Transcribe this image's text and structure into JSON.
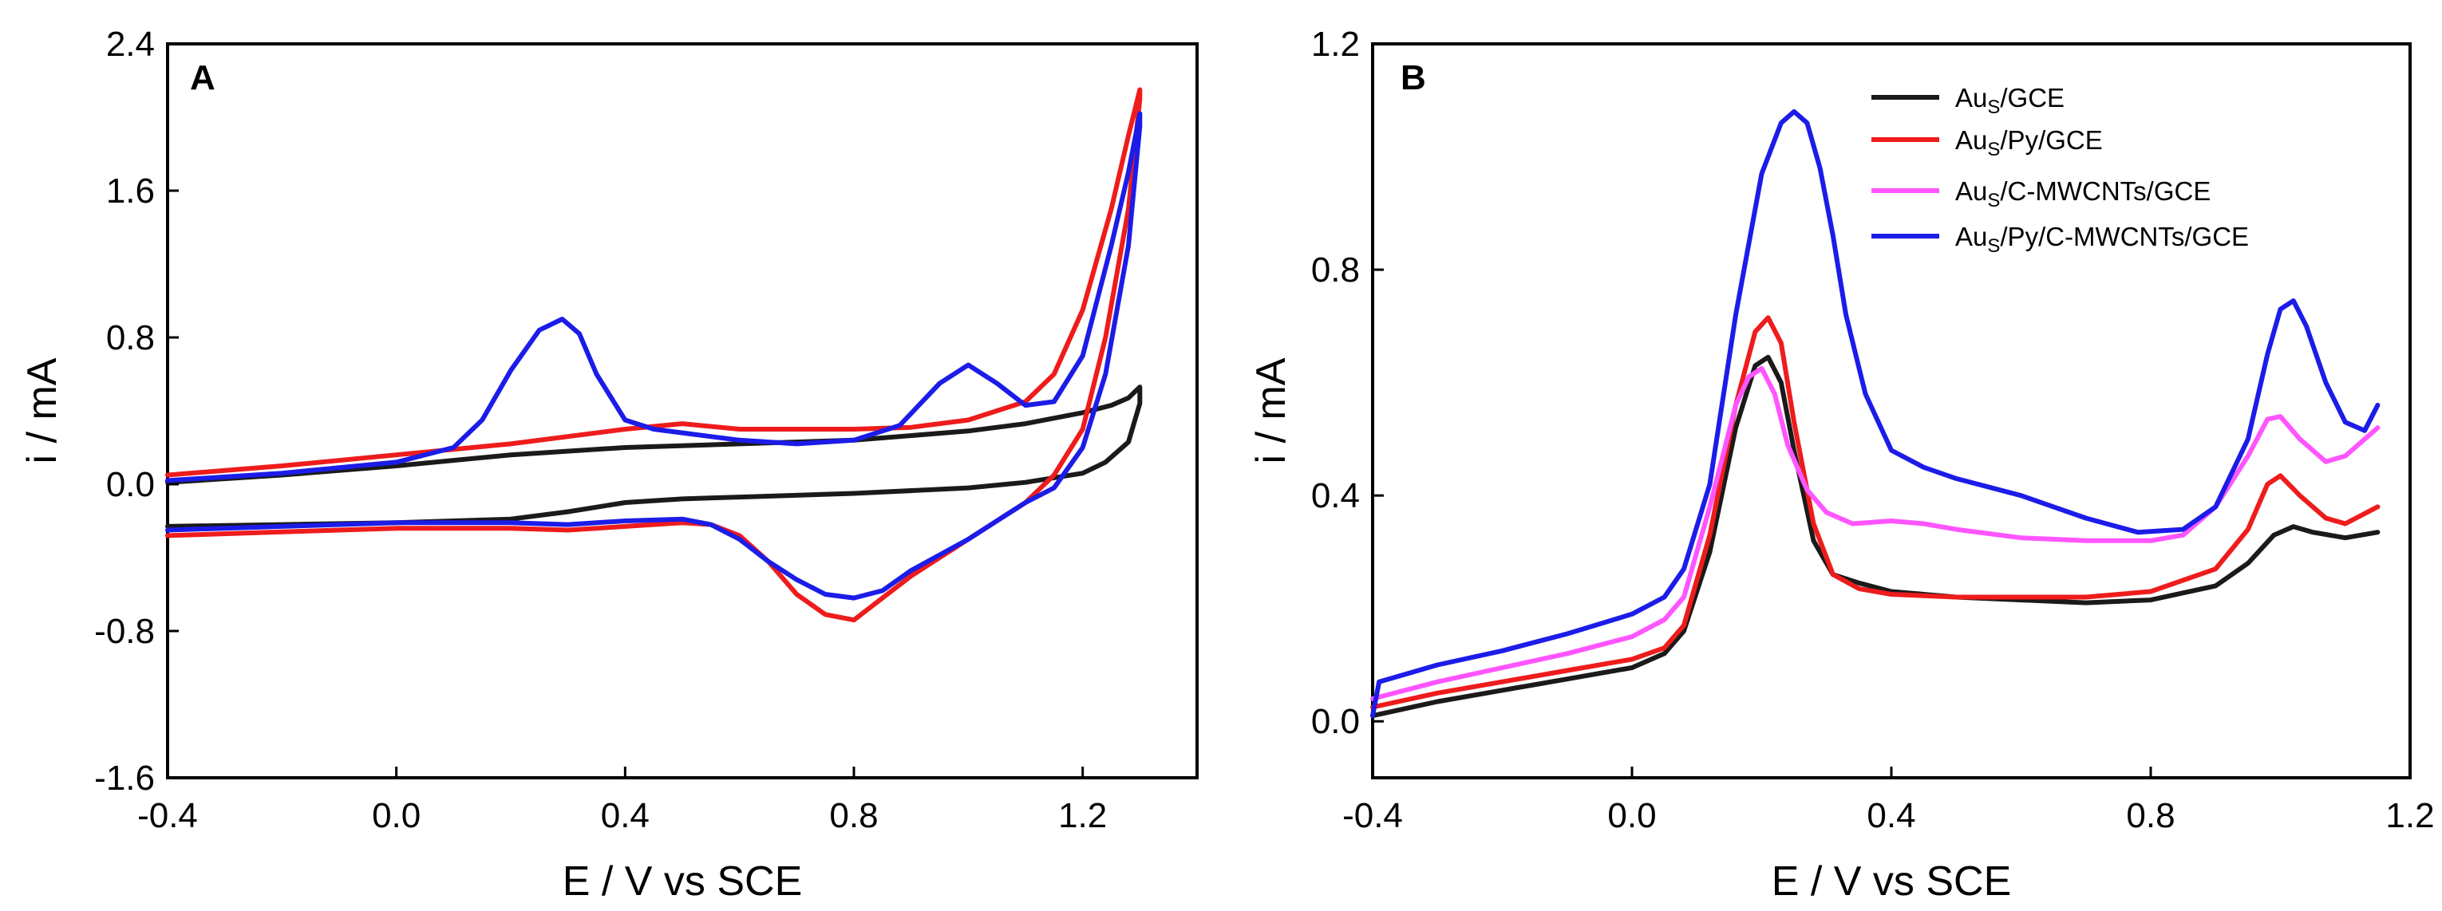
{
  "chart_data": [
    {
      "type": "line",
      "panel": "A",
      "xlabel": "E / V vs SCE",
      "ylabel": "i / mA",
      "xlim": [
        -0.4,
        1.4
      ],
      "ylim": [
        -1.6,
        2.4
      ],
      "xticks": [
        -0.4,
        0.0,
        0.4,
        0.8,
        1.2
      ],
      "yticks": [
        -1.6,
        -0.8,
        0.0,
        0.8,
        1.6,
        2.4
      ],
      "x_tick_labels": [
        "-0.4",
        "0.0",
        "0.4",
        "0.8",
        "1.2"
      ],
      "y_tick_labels": [
        "-1.6",
        "-0.8",
        "0.0",
        "0.8",
        "1.6",
        "2.4"
      ],
      "series": [
        {
          "name": "black",
          "color": "#1a1a1a",
          "x": [
            -0.4,
            -0.2,
            0.0,
            0.2,
            0.4,
            0.6,
            0.8,
            1.0,
            1.1,
            1.2,
            1.25,
            1.28,
            1.3,
            1.3,
            1.28,
            1.24,
            1.2,
            1.1,
            1.0,
            0.8,
            0.6,
            0.5,
            0.4,
            0.3,
            0.2,
            0.0,
            -0.2,
            -0.4
          ],
          "y": [
            0.01,
            0.05,
            0.1,
            0.16,
            0.2,
            0.22,
            0.24,
            0.29,
            0.33,
            0.39,
            0.43,
            0.47,
            0.53,
            0.44,
            0.23,
            0.12,
            0.06,
            0.01,
            -0.02,
            -0.05,
            -0.07,
            -0.08,
            -0.1,
            -0.15,
            -0.19,
            -0.21,
            -0.22,
            -0.23
          ]
        },
        {
          "name": "red",
          "color": "#ee1c1c",
          "x": [
            -0.4,
            -0.2,
            0.0,
            0.2,
            0.4,
            0.5,
            0.6,
            0.8,
            0.9,
            1.0,
            1.1,
            1.15,
            1.2,
            1.25,
            1.28,
            1.3,
            1.3,
            1.28,
            1.24,
            1.2,
            1.15,
            1.1,
            1.0,
            0.9,
            0.8,
            0.75,
            0.7,
            0.65,
            0.6,
            0.55,
            0.5,
            0.4,
            0.3,
            0.2,
            0.0,
            -0.2,
            -0.4
          ],
          "y": [
            0.05,
            0.1,
            0.16,
            0.22,
            0.3,
            0.33,
            0.3,
            0.3,
            0.31,
            0.35,
            0.45,
            0.6,
            0.95,
            1.5,
            1.9,
            2.15,
            2.1,
            1.5,
            0.8,
            0.3,
            0.05,
            -0.1,
            -0.3,
            -0.5,
            -0.74,
            -0.71,
            -0.6,
            -0.42,
            -0.28,
            -0.22,
            -0.21,
            -0.23,
            -0.25,
            -0.24,
            -0.24,
            -0.26,
            -0.28
          ]
        },
        {
          "name": "blue",
          "color": "#1c1ce8",
          "x": [
            -0.4,
            -0.2,
            0.0,
            0.1,
            0.15,
            0.2,
            0.25,
            0.29,
            0.32,
            0.35,
            0.4,
            0.45,
            0.5,
            0.6,
            0.7,
            0.8,
            0.88,
            0.95,
            1.0,
            1.05,
            1.1,
            1.15,
            1.2,
            1.25,
            1.28,
            1.3,
            1.3,
            1.28,
            1.24,
            1.2,
            1.15,
            1.1,
            1.0,
            0.9,
            0.85,
            0.8,
            0.75,
            0.7,
            0.65,
            0.6,
            0.55,
            0.5,
            0.4,
            0.3,
            0.2,
            0.0,
            -0.2,
            -0.4
          ],
          "y": [
            0.02,
            0.06,
            0.12,
            0.2,
            0.35,
            0.62,
            0.84,
            0.9,
            0.82,
            0.6,
            0.35,
            0.3,
            0.28,
            0.24,
            0.22,
            0.24,
            0.32,
            0.55,
            0.65,
            0.55,
            0.43,
            0.45,
            0.7,
            1.3,
            1.7,
            2.02,
            1.95,
            1.3,
            0.6,
            0.2,
            -0.02,
            -0.1,
            -0.3,
            -0.47,
            -0.58,
            -0.62,
            -0.6,
            -0.52,
            -0.42,
            -0.3,
            -0.22,
            -0.19,
            -0.2,
            -0.22,
            -0.21,
            -0.21,
            -0.23,
            -0.25
          ]
        }
      ]
    },
    {
      "type": "line",
      "panel": "B",
      "xlabel": "E / V vs SCE",
      "ylabel": "i / mA",
      "xlim": [
        -0.4,
        1.2
      ],
      "ylim": [
        -0.1,
        1.2
      ],
      "xticks": [
        -0.4,
        0.0,
        0.4,
        0.8,
        1.2
      ],
      "yticks": [
        0.0,
        0.4,
        0.8,
        1.2
      ],
      "x_tick_labels": [
        "-0.4",
        "0.0",
        "0.4",
        "0.8",
        "1.2"
      ],
      "y_tick_labels": [
        "0.0",
        "0.4",
        "0.8",
        "1.2"
      ],
      "legend": {
        "placement": "top-right",
        "entries": [
          {
            "main": "Au",
            "sub": "S",
            "rest": "/GCE",
            "color": "#1a1a1a"
          },
          {
            "main": "Au",
            "sub": "S",
            "rest": "/Py/GCE",
            "color": "#ee1c1c"
          },
          {
            "main": "Au",
            "sub": "S",
            "rest": "/C-MWCNTs/GCE",
            "color": "#ff55ff"
          },
          {
            "main": "Au",
            "sub": "S",
            "rest": "/Py/C-MWCNTs/GCE",
            "color": "#1c1ce8"
          }
        ]
      },
      "series": [
        {
          "name": "Aus/GCE",
          "color": "#1a1a1a",
          "x": [
            -0.4,
            -0.3,
            -0.2,
            -0.1,
            0.0,
            0.05,
            0.08,
            0.12,
            0.16,
            0.19,
            0.21,
            0.23,
            0.25,
            0.28,
            0.31,
            0.35,
            0.4,
            0.5,
            0.6,
            0.7,
            0.8,
            0.9,
            0.95,
            0.99,
            1.02,
            1.05,
            1.1,
            1.15
          ],
          "y": [
            0.01,
            0.035,
            0.055,
            0.075,
            0.095,
            0.12,
            0.16,
            0.3,
            0.52,
            0.63,
            0.645,
            0.6,
            0.48,
            0.32,
            0.26,
            0.245,
            0.23,
            0.22,
            0.215,
            0.21,
            0.215,
            0.24,
            0.28,
            0.33,
            0.345,
            0.335,
            0.325,
            0.335
          ]
        },
        {
          "name": "Aus/Py/GCE",
          "color": "#ee1c1c",
          "x": [
            -0.4,
            -0.3,
            -0.2,
            -0.1,
            0.0,
            0.05,
            0.08,
            0.12,
            0.16,
            0.19,
            0.21,
            0.23,
            0.25,
            0.28,
            0.31,
            0.35,
            0.4,
            0.5,
            0.6,
            0.7,
            0.8,
            0.9,
            0.95,
            0.98,
            1.0,
            1.03,
            1.07,
            1.1,
            1.15
          ],
          "y": [
            0.025,
            0.05,
            0.07,
            0.09,
            0.11,
            0.13,
            0.17,
            0.33,
            0.56,
            0.69,
            0.715,
            0.67,
            0.53,
            0.35,
            0.26,
            0.235,
            0.225,
            0.22,
            0.22,
            0.22,
            0.23,
            0.27,
            0.34,
            0.42,
            0.435,
            0.4,
            0.36,
            0.35,
            0.38
          ]
        },
        {
          "name": "Aus/C-MWCNTs/GCE",
          "color": "#ff55ff",
          "x": [
            -0.4,
            -0.3,
            -0.2,
            -0.1,
            0.0,
            0.05,
            0.08,
            0.12,
            0.16,
            0.18,
            0.2,
            0.22,
            0.24,
            0.27,
            0.3,
            0.34,
            0.4,
            0.45,
            0.5,
            0.6,
            0.7,
            0.8,
            0.85,
            0.9,
            0.95,
            0.98,
            1.0,
            1.03,
            1.07,
            1.1,
            1.15
          ],
          "y": [
            0.04,
            0.07,
            0.095,
            0.12,
            0.15,
            0.18,
            0.22,
            0.38,
            0.56,
            0.61,
            0.625,
            0.58,
            0.49,
            0.41,
            0.37,
            0.35,
            0.355,
            0.35,
            0.34,
            0.325,
            0.32,
            0.32,
            0.33,
            0.38,
            0.47,
            0.535,
            0.54,
            0.5,
            0.46,
            0.47,
            0.52
          ]
        },
        {
          "name": "Aus/Py/C-MWCNTs/GCE",
          "color": "#1c1ce8",
          "x": [
            -0.4,
            -0.39,
            -0.3,
            -0.2,
            -0.1,
            0.0,
            0.05,
            0.08,
            0.12,
            0.16,
            0.2,
            0.23,
            0.25,
            0.27,
            0.29,
            0.31,
            0.33,
            0.36,
            0.4,
            0.45,
            0.5,
            0.6,
            0.7,
            0.78,
            0.85,
            0.9,
            0.95,
            0.98,
            1.0,
            1.02,
            1.04,
            1.07,
            1.1,
            1.13,
            1.15
          ],
          "y": [
            0.01,
            0.07,
            0.1,
            0.125,
            0.155,
            0.19,
            0.22,
            0.27,
            0.42,
            0.72,
            0.97,
            1.06,
            1.08,
            1.06,
            0.98,
            0.86,
            0.72,
            0.58,
            0.48,
            0.45,
            0.43,
            0.4,
            0.36,
            0.335,
            0.34,
            0.38,
            0.5,
            0.65,
            0.73,
            0.745,
            0.7,
            0.6,
            0.53,
            0.515,
            0.56
          ]
        }
      ]
    }
  ]
}
